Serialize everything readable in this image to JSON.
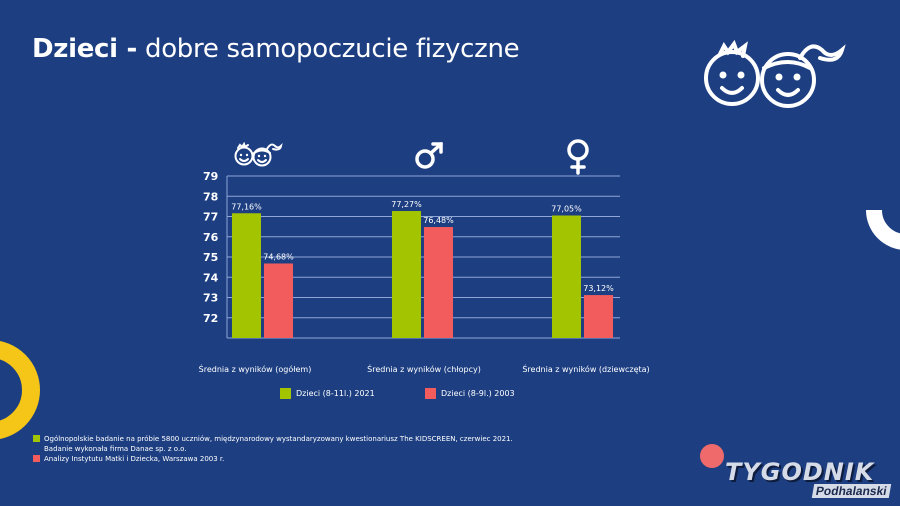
{
  "header": {
    "title_bold": "Dzieci -",
    "title_rest": " dobre samopoczucie fizyczne"
  },
  "colors": {
    "background": "#1d3f82",
    "series_2021": "#a3c400",
    "series_2003": "#f25c5c",
    "accent_yellow": "#f5c518",
    "accent_red": "#ef6b6b"
  },
  "icons": {
    "header": "boy-girl-faces-icon",
    "group1": "boy-girl-faces-icon",
    "group2": "male-symbol-icon",
    "group3": "female-symbol-icon"
  },
  "chart_data": {
    "type": "bar",
    "title": "Dzieci - dobre samopoczucie fizyczne",
    "xlabel": "",
    "ylabel": "",
    "categories": [
      "Średnia z wyników (ogółem)",
      "Średnia z wyników (chłopcy)",
      "Średnia z wyników (dziewczęta)"
    ],
    "series": [
      {
        "name": "Dzieci (8-11l.) 2021",
        "values": [
          77.16,
          77.27,
          77.05
        ],
        "labels": [
          "77,16%",
          "77,27%",
          "77,05%"
        ],
        "color": "#a3c400"
      },
      {
        "name": "Dzieci (8-9l.) 2003",
        "values": [
          74.68,
          76.48,
          73.12
        ],
        "labels": [
          "74,68%",
          "76,48%",
          "73,12%"
        ],
        "color": "#f25c5c"
      }
    ],
    "yticks": [
      72,
      73,
      74,
      75,
      76,
      77,
      78,
      79
    ],
    "ylim": [
      71,
      79
    ],
    "grid": true,
    "legend_position": "bottom"
  },
  "legend": {
    "items": [
      {
        "label": "Dzieci (8-11l.) 2021",
        "color": "#a3c400"
      },
      {
        "label": "Dzieci (8-9l.) 2003",
        "color": "#f25c5c"
      }
    ]
  },
  "notes": {
    "line1": "Ogólnopolskie badanie na próbie 5800 uczniów, międzynarodowy wystandaryzowany kwestionariusz The KIDSCREEN, czerwiec 2021.",
    "line2": "Badanie wykonała firma Danae sp. z o.o.",
    "line3": "Analizy Instytutu Matki i Dziecka, Warszawa 2003 r."
  },
  "logo": {
    "main": "TYGODNIK",
    "sub": "Podhalanski"
  }
}
